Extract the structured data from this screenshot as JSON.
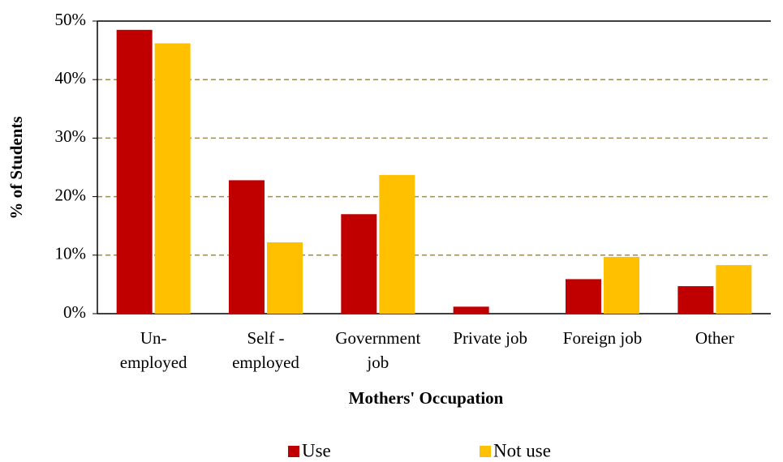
{
  "chart_data": {
    "type": "bar",
    "x_label": "Mothers' Occupation",
    "y_label": "% of Students",
    "categories": [
      "Un-\nemployed",
      "Self -\nemployed",
      "Government\njob",
      "Private job",
      "Foreign job",
      "Other"
    ],
    "series": [
      {
        "name": "Use",
        "color": "#c00000",
        "values": [
          48.5,
          22.8,
          17.0,
          1.2,
          5.9,
          4.7
        ]
      },
      {
        "name": "Not use",
        "color": "#ffc000",
        "values": [
          46.2,
          12.2,
          23.7,
          0,
          9.7,
          8.3
        ]
      }
    ],
    "ylim": [
      0,
      50
    ],
    "yticks": [
      {
        "value": 0,
        "label": "0%"
      },
      {
        "value": 10,
        "label": "10%"
      },
      {
        "value": 20,
        "label": "20%"
      },
      {
        "value": 30,
        "label": "30%"
      },
      {
        "value": 40,
        "label": "40%"
      },
      {
        "value": 50,
        "label": "50%"
      }
    ],
    "grid": true,
    "legend": "bottom"
  }
}
